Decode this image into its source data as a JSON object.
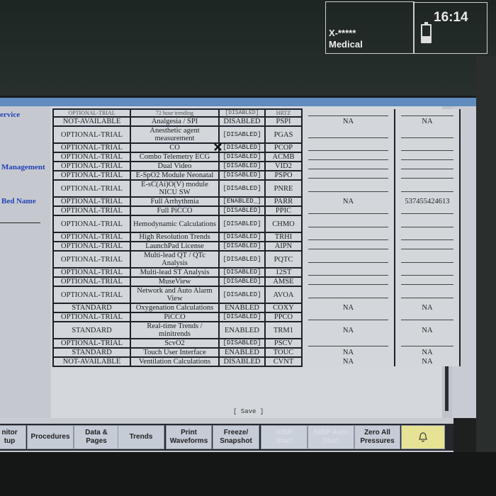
{
  "header": {
    "device_id": "X-*****",
    "unit": "Medical",
    "time": "16:14",
    "battery_icon": "battery-icon",
    "battery_level": 0.35
  },
  "left_panel": {
    "labels": [
      "ervice",
      "Management",
      "Bed Name"
    ]
  },
  "table": {
    "cut_row": [
      "OPTIONAL-TRIAL",
      "72 hour trending",
      "[DISABLED]",
      "HRTZ"
    ],
    "rows": [
      {
        "status": "NOT-AVAILABLE",
        "name": "Analgesia / SPI",
        "state": "DISABLED",
        "code": "PSPI",
        "col5": "NA",
        "col6": "NA"
      },
      {
        "status": "OPTIONAL-TRIAL",
        "name": "Anesthetic agent measurement",
        "state": "[DISABLED]",
        "code": "PGAS"
      },
      {
        "status": "OPTIONAL-TRIAL",
        "name": "CO",
        "state": "[DISABLED]",
        "code": "PCOP"
      },
      {
        "status": "OPTIONAL-TRIAL",
        "name": "Combo Telemetry ECG",
        "state": "[DISABLED]",
        "code": "ACMB"
      },
      {
        "status": "OPTIONAL-TRIAL",
        "name": "Dual Video",
        "state": "[DISABLED]",
        "code": "VID2"
      },
      {
        "status": "OPTIONAL-TRIAL",
        "name": "E-SpO2 Module Neonatal",
        "state": "[DISABLED]",
        "code": "PSPO"
      },
      {
        "status": "OPTIONAL-TRIAL",
        "name": "E-sC(Ai)O(V) module NICU SW",
        "state": "[DISABLED]",
        "code": "PNRE"
      },
      {
        "status": "OPTIONAL-TRIAL",
        "name": "Full Arrhythmia",
        "state": "[ENABLED_]",
        "code": "PARR",
        "col5": "NA",
        "col6": "537455424613"
      },
      {
        "status": "OPTIONAL-TRIAL",
        "name": "Full PiCCO",
        "state": "[DISABLED]",
        "code": "PPIC"
      },
      {
        "status": "OPTIONAL-TRIAL",
        "name": "Hemodynamic Calculations",
        "state": "[DISABLED]",
        "code": "CHMO"
      },
      {
        "status": "OPTIONAL-TRIAL",
        "name": "High Resolution Trends",
        "state": "[DISABLED]",
        "code": "TRHI"
      },
      {
        "status": "OPTIONAL-TRIAL",
        "name": "LaunchPad License",
        "state": "[DISABLED]",
        "code": "AIPN"
      },
      {
        "status": "OPTIONAL-TRIAL",
        "name": "Multi-lead QT / QTc Analysis",
        "state": "[DISABLED]",
        "code": "PQTC"
      },
      {
        "status": "OPTIONAL-TRIAL",
        "name": "Multi-lead ST Analysis",
        "state": "[DISABLED]",
        "code": "12ST"
      },
      {
        "status": "OPTIONAL-TRIAL",
        "name": "MuseView",
        "state": "[DISABLED]",
        "code": "AMSE"
      },
      {
        "status": "OPTIONAL-TRIAL",
        "name": "Network and Auto Alarm View",
        "state": "[DISABLED]",
        "code": "AVOA"
      },
      {
        "status": "STANDARD",
        "name": "Oxygenation Calculations",
        "state": "ENABLED",
        "code": "COXY",
        "col5": "NA",
        "col6": "NA"
      },
      {
        "status": "OPTIONAL-TRIAL",
        "name": "PiCCO",
        "state": "[DISABLED]",
        "code": "PPCO"
      },
      {
        "status": "STANDARD",
        "name": "Real-time Trends / minitrends",
        "state": "ENABLED",
        "code": "TRM1",
        "col5": "NA",
        "col6": "NA"
      },
      {
        "status": "OPTIONAL-TRIAL",
        "name": "ScvO2",
        "state": "[DISABLED]",
        "code": "PSCV"
      },
      {
        "status": "STANDARD",
        "name": "Touch User Interface",
        "state": "ENABLED",
        "code": "TOUC",
        "col5": "NA",
        "col6": "NA"
      },
      {
        "status": "NOT-AVAILABLE",
        "name": "Ventilation Calculations",
        "state": "DISABLED",
        "code": "CVNT",
        "col5": "NA",
        "col6": "NA"
      }
    ],
    "save_label": "[ Save ]"
  },
  "toolbar": {
    "buttons": [
      {
        "label": "nitor\ntup",
        "enabled": true
      },
      {
        "label": "Procedures",
        "enabled": true
      },
      {
        "label": "Data &\nPages",
        "enabled": true
      },
      {
        "label": "Trends",
        "enabled": true
      },
      {
        "label": "Print\nWaveforms",
        "enabled": true
      },
      {
        "label": "Freeze/\nSnapshot",
        "enabled": true
      },
      {
        "label": "NIBP\nStart",
        "enabled": false
      },
      {
        "label": "NIBP Auto\nStart",
        "enabled": false
      },
      {
        "label": "Zero All\nPressures",
        "enabled": true
      }
    ],
    "alarm_icon": "alarm-bell-icon",
    "alarm_color": "#e7e394"
  }
}
